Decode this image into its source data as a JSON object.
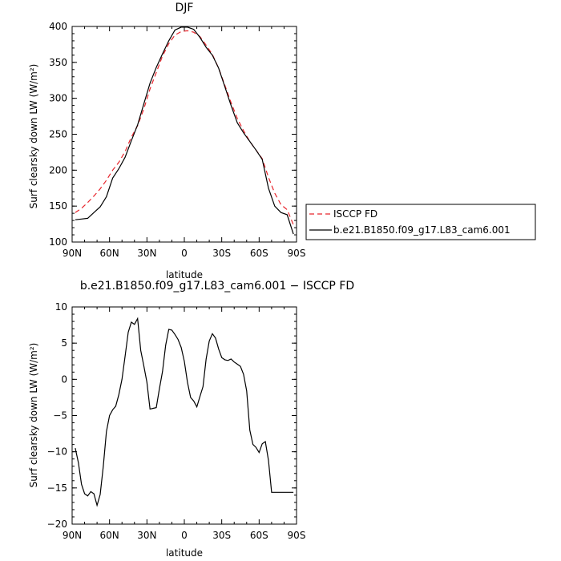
{
  "chart_data": [
    {
      "type": "line",
      "title": "DJF",
      "xlabel": "latitude",
      "ylabel": "Surf clearsky down LW (W/m²)",
      "xlim": [
        90,
        -90
      ],
      "ylim": [
        100,
        400
      ],
      "x_ticks": [
        90,
        60,
        30,
        0,
        -30,
        -60,
        -90
      ],
      "x_tick_labels": [
        "90N",
        "60N",
        "30N",
        "0",
        "30S",
        "60S",
        "90S"
      ],
      "y_ticks": [
        100,
        150,
        200,
        250,
        300,
        350,
        400
      ],
      "y_tick_labels": [
        "100",
        "150",
        "200",
        "250",
        "300",
        "350",
        "400"
      ],
      "legend_position": "right",
      "series": [
        {
          "name": "ISCCP FD",
          "color": "#e8242b",
          "dash": "dashed",
          "x": [
            87.5,
            82.5,
            77.5,
            72.5,
            67.5,
            62.5,
            57.5,
            52.5,
            47.5,
            42.5,
            37.5,
            32.5,
            27.5,
            22.5,
            17.5,
            12.5,
            7.5,
            2.5,
            -2.5,
            -7.5,
            -12.5,
            -17.5,
            -22.5,
            -27.5,
            -32.5,
            -37.5,
            -42.5,
            -47.5,
            -52.5,
            -57.5,
            -62.5,
            -67.5,
            -72.5,
            -77.5,
            -82.5,
            -87.5
          ],
          "y": [
            141,
            147,
            155,
            164,
            174,
            186,
            200,
            211,
            226,
            246,
            262,
            285,
            313,
            336,
            359,
            376,
            388,
            393,
            394,
            392,
            386,
            374,
            361,
            342,
            318,
            294,
            272,
            255,
            240,
            228,
            216,
            190,
            168,
            152,
            145,
            124
          ]
        },
        {
          "name": "b.e21.B1850.f09_g17.L83_cam6.001",
          "color": "#000000",
          "dash": "solid",
          "x": [
            87.5,
            82.5,
            77.5,
            72.5,
            67.5,
            62.5,
            57.5,
            52.5,
            47.5,
            42.5,
            37.5,
            32.5,
            27.5,
            22.5,
            17.5,
            12.5,
            7.5,
            2.5,
            -2.5,
            -7.5,
            -12.5,
            -17.5,
            -22.5,
            -27.5,
            -32.5,
            -37.5,
            -42.5,
            -47.5,
            -52.5,
            -57.5,
            -62.5,
            -67.5,
            -72.5,
            -77.5,
            -82.5,
            -87.5
          ],
          "y": [
            131,
            132,
            133,
            141,
            149,
            163,
            189,
            202,
            218,
            241,
            263,
            292,
            321,
            343,
            362,
            380,
            395,
            399,
            399,
            396,
            385,
            371,
            360,
            342,
            316,
            290,
            266,
            252,
            240,
            228,
            215,
            175,
            150,
            141,
            138,
            111
          ]
        }
      ]
    },
    {
      "type": "line",
      "title": "b.e21.B1850.f09_g17.L83_cam6.001 − ISCCP FD",
      "xlabel": "latitude",
      "ylabel": "Surf clearsky down LW (W/m²)",
      "xlim": [
        90,
        -90
      ],
      "ylim": [
        -20,
        10
      ],
      "x_ticks": [
        90,
        60,
        30,
        0,
        -30,
        -60,
        -90
      ],
      "x_tick_labels": [
        "90N",
        "60N",
        "30N",
        "0",
        "30S",
        "60S",
        "90S"
      ],
      "y_ticks": [
        -20,
        -15,
        -10,
        -5,
        0,
        5,
        10
      ],
      "y_tick_labels": [
        "−20",
        "−15",
        "−10",
        "−5",
        "0",
        "5",
        "10"
      ],
      "series": [
        {
          "color": "#000000",
          "dash": "solid",
          "x": [
            87.5,
            85,
            82.5,
            80,
            77.5,
            75,
            72.5,
            70,
            67.5,
            65,
            62.5,
            60,
            57.5,
            55,
            52.5,
            50,
            47.5,
            45,
            42.5,
            40,
            37.5,
            35,
            32.5,
            30,
            27.5,
            25,
            22.5,
            20,
            17.5,
            15,
            12.5,
            10,
            7.5,
            5,
            2.5,
            0,
            -2.5,
            -5,
            -7.5,
            -10,
            -12.5,
            -15,
            -17.5,
            -20,
            -22.5,
            -25,
            -27.5,
            -30,
            -32.5,
            -35,
            -37.5,
            -40,
            -42.5,
            -45,
            -47.5,
            -50,
            -52.5,
            -55,
            -57.5,
            -60,
            -62.5,
            -65,
            -67.5,
            -70,
            -72.5,
            -75,
            -77.5,
            -80,
            -82.5,
            -85,
            -87.5
          ],
          "y": [
            -9.5,
            -11.5,
            -14.5,
            -15.8,
            -16.1,
            -15.5,
            -15.8,
            -17.4,
            -15.9,
            -12.0,
            -7.2,
            -5.0,
            -4.2,
            -3.7,
            -2.1,
            0.0,
            3.2,
            6.5,
            7.9,
            7.6,
            8.4,
            4.0,
            1.9,
            -0.4,
            -4.1,
            -4.0,
            -3.9,
            -1.3,
            1.1,
            4.7,
            6.9,
            6.8,
            6.2,
            5.5,
            4.4,
            2.5,
            -0.4,
            -2.5,
            -3.0,
            -3.8,
            -2.4,
            -1.0,
            2.8,
            5.3,
            6.3,
            5.7,
            4.2,
            3.0,
            2.7,
            2.6,
            2.8,
            2.4,
            2.1,
            1.8,
            0.7,
            -1.6,
            -7.0,
            -9.0,
            -9.4,
            -10.1,
            -8.9,
            -8.6,
            -11.2,
            -15.6,
            -15.6,
            -15.6,
            -15.6,
            -15.6,
            -15.6,
            -15.6,
            -15.6
          ]
        }
      ]
    }
  ]
}
